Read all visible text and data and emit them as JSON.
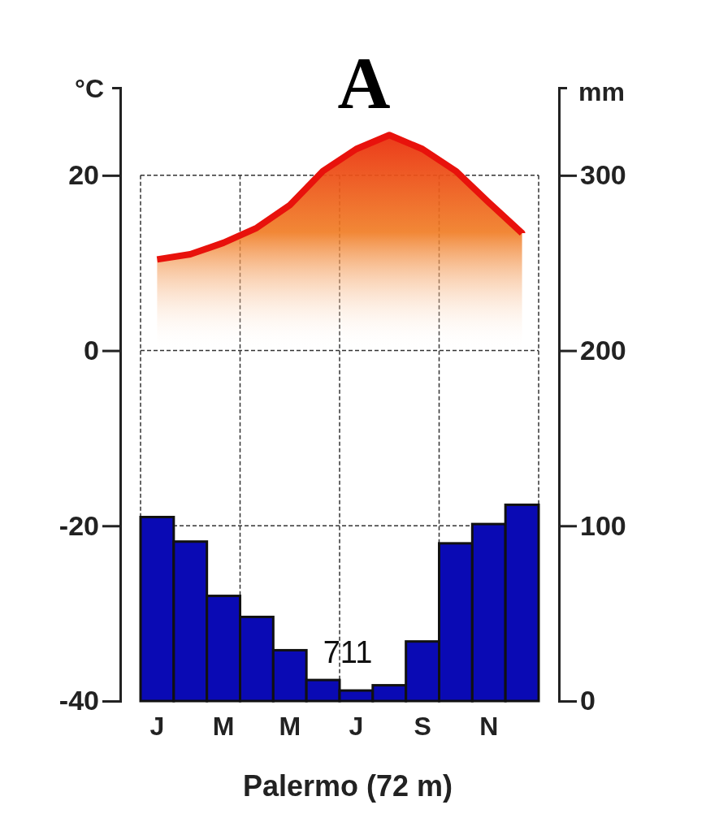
{
  "chart_data": {
    "type": "bar",
    "title": "A",
    "xlabel": "Palermo (72 m)",
    "ylabel": "°C",
    "y2label": "mm",
    "categories": [
      "J",
      null,
      "M",
      null,
      "M",
      null,
      "J",
      null,
      "S",
      null,
      "N",
      null
    ],
    "series": [
      {
        "type": "area",
        "color": "#e8120c",
        "values": [
          10.4,
          11,
          12.3,
          14,
          16.6,
          20.5,
          23,
          24.6,
          23,
          20.5,
          16.9,
          13.4
        ]
      },
      {
        "axis": "y2",
        "color": "#0a0ab4",
        "values": [
          105,
          91,
          60,
          48,
          29,
          12,
          6,
          9,
          34,
          90,
          101,
          112
        ]
      }
    ],
    "ylim": [
      -40,
      30
    ],
    "yticks": [
      -40,
      -20,
      0,
      20
    ],
    "y2lim": [
      0,
      350
    ],
    "y2ticks": [
      0,
      100,
      200,
      300
    ],
    "grid": true,
    "annotations": [
      "711"
    ]
  }
}
